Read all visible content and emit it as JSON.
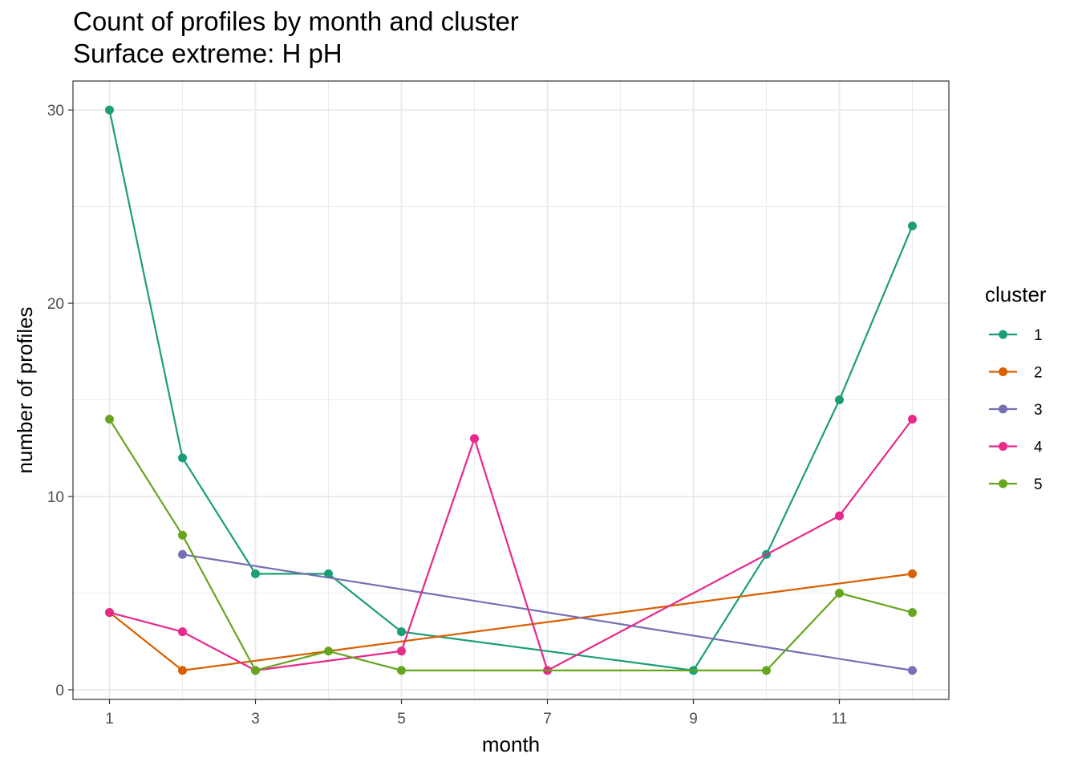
{
  "chart_data": {
    "type": "line",
    "title": "Count of profiles by month and cluster",
    "subtitle": "Surface extreme: H pH",
    "xlabel": "month",
    "ylabel": "number of profiles",
    "xlim": [
      0.5,
      12.5
    ],
    "ylim": [
      -0.5,
      31.5
    ],
    "x_ticks": [
      1,
      3,
      5,
      7,
      9,
      11
    ],
    "y_ticks": [
      0,
      10,
      20,
      30
    ],
    "grid": true,
    "legend": {
      "title": "cluster",
      "position": "right"
    },
    "series": [
      {
        "name": "1",
        "color": "#1b9e77",
        "points": [
          [
            1,
            30
          ],
          [
            2,
            12
          ],
          [
            3,
            6
          ],
          [
            4,
            6
          ],
          [
            5,
            3
          ],
          [
            9,
            1
          ],
          [
            10,
            7
          ],
          [
            11,
            15
          ],
          [
            12,
            24
          ]
        ]
      },
      {
        "name": "2",
        "color": "#d95f02",
        "points": [
          [
            1,
            4
          ],
          [
            2,
            1
          ],
          [
            12,
            6
          ]
        ]
      },
      {
        "name": "3",
        "color": "#7570b3",
        "points": [
          [
            2,
            7
          ],
          [
            12,
            1
          ]
        ]
      },
      {
        "name": "4",
        "color": "#e7298a",
        "points": [
          [
            1,
            4
          ],
          [
            2,
            3
          ],
          [
            3,
            1
          ],
          [
            5,
            2
          ],
          [
            6,
            13
          ],
          [
            7,
            1
          ],
          [
            11,
            9
          ],
          [
            12,
            14
          ]
        ]
      },
      {
        "name": "5",
        "color": "#66a61e",
        "points": [
          [
            1,
            14
          ],
          [
            2,
            8
          ],
          [
            3,
            1
          ],
          [
            4,
            2
          ],
          [
            5,
            1
          ],
          [
            10,
            1
          ],
          [
            11,
            5
          ],
          [
            12,
            4
          ]
        ]
      }
    ]
  }
}
